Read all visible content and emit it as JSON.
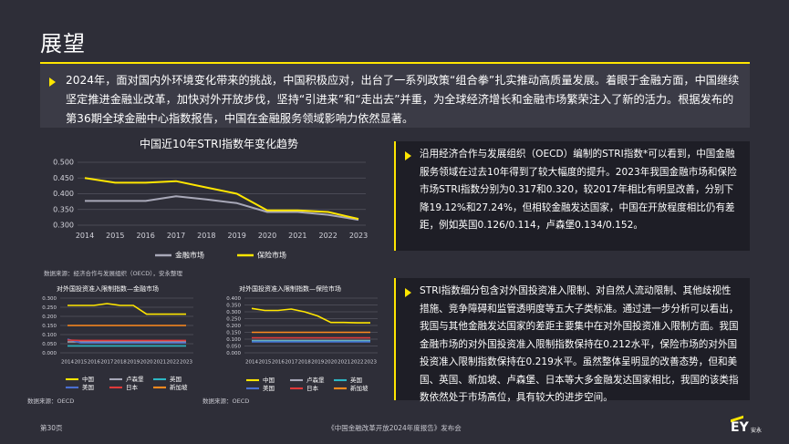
{
  "page": {
    "title": "展望",
    "intro": "2024年，面对国内外环境变化带来的挑战，中国积极应对，出台了一系列政策“组合拳”扎实推动高质量发展。着眼于金融方面，中国继续坚定推进金融业改革，加快对外开放步伐，坚持“引进来”和“走出去”并重，为全球经济增长和金融市场繁荣注入了新的活力。根据发布的第36期全球金融中心指数报告，中国在金融服务领域影响力依然显著。",
    "panel1": "沿用经济合作与发展组织（OECD）编制的STRI指数*可以看到，中国金融服务领域在过去10年得到了较大幅度的提升。2023年我国金融市场和保险市场STRI指数分别为0.317和0.320，较2017年相比有明显改善，分别下降19.12%和27.24%，但相较金融发达国家，中国在开放程度相比仍有差距，例如英国0.126/0.114，卢森堡0.134/0.152。",
    "panel2": "STRI指数细分包含对外国投资准入限制、对自然人流动限制、其他歧视性措施、竞争障碍和监管透明度等五大子类标准。通过进一步分析可以看出，我国与其他金融发达国家的差距主要集中在对外国投资准入限制方面。我国金融市场的对外国投资准入限制指数保持在0.212水平，保险市场的对外国投资准入限制指数保持在0.219水平。虽然整体呈明显的改善态势，但和美国、英国、新加坡、卢森堡、日本等大多金融发达国家相比，我国的该类指数依然处于市场高位，具有较大的进步空间。",
    "source_main": "数据来源：经济合作与发展组织（OECD），安永整理",
    "source_small1": "数据来源：OECD",
    "source_small2": "数据来源：OECD",
    "footer_page": "第30页",
    "footer_center": "《中国金融改革开放2024年度报告》发布会",
    "logo_text": "EY",
    "logo_sub": "安永",
    "colors": {
      "accent": "#ffe600",
      "background": "#2e2e38",
      "panel": "#1e1e26"
    }
  },
  "chart_data": [
    {
      "type": "line",
      "title": "中国近10年STRI指数年变化趋势",
      "x": [
        "2014",
        "2015",
        "2016",
        "2017",
        "2018",
        "2019",
        "2020",
        "2021",
        "2022",
        "2023"
      ],
      "ylim": [
        0.3,
        0.5
      ],
      "yticks": [
        "0.500",
        "0.450",
        "0.400",
        "0.350",
        "0.300"
      ],
      "grid": true,
      "legend": "bottom",
      "series": [
        {
          "name": "金融市场",
          "color": "#a8a8b8",
          "values": [
            0.377,
            0.377,
            0.377,
            0.392,
            0.382,
            0.37,
            0.342,
            0.342,
            0.333,
            0.317
          ]
        },
        {
          "name": "保险市场",
          "color": "#ffe600",
          "values": [
            0.45,
            0.435,
            0.435,
            0.44,
            0.42,
            0.4,
            0.347,
            0.347,
            0.342,
            0.32
          ]
        }
      ]
    },
    {
      "type": "line",
      "title": "对外国投资准入限制指数—金融市场",
      "x": [
        "2014",
        "2015",
        "2016",
        "2017",
        "2018",
        "2019",
        "2020",
        "2021",
        "2022",
        "2023"
      ],
      "ylim": [
        0,
        0.3
      ],
      "yticks": [
        "0.300",
        "0.250",
        "0.200",
        "0.150",
        "0.100",
        "0.050",
        "0.000"
      ],
      "grid": true,
      "legend": "bottom",
      "series": [
        {
          "name": "中国",
          "color": "#ffe600",
          "values": [
            0.26,
            0.26,
            0.26,
            0.27,
            0.26,
            0.26,
            0.212,
            0.212,
            0.212,
            0.212
          ]
        },
        {
          "name": "卢森堡",
          "color": "#a8a8b8",
          "values": [
            0.06,
            0.06,
            0.06,
            0.06,
            0.06,
            0.06,
            0.06,
            0.06,
            0.06,
            0.06
          ]
        },
        {
          "name": "英国",
          "color": "#2db7c4",
          "values": [
            0.038,
            0.038,
            0.038,
            0.038,
            0.038,
            0.038,
            0.038,
            0.038,
            0.038,
            0.038
          ]
        },
        {
          "name": "美国",
          "color": "#4a6fd1",
          "values": [
            0.075,
            0.055,
            0.055,
            0.055,
            0.055,
            0.055,
            0.055,
            0.055,
            0.055,
            0.055
          ]
        },
        {
          "name": "日本",
          "color": "#e03a3a",
          "values": [
            0.07,
            0.068,
            0.068,
            0.068,
            0.068,
            0.068,
            0.068,
            0.068,
            0.068,
            0.068
          ]
        },
        {
          "name": "新加坡",
          "color": "#ff8a1e",
          "values": [
            0.15,
            0.15,
            0.15,
            0.15,
            0.15,
            0.15,
            0.15,
            0.15,
            0.15,
            0.15
          ]
        }
      ]
    },
    {
      "type": "line",
      "title": "对外国投资准入限制指数—保险市场",
      "x": [
        "2014",
        "2015",
        "2016",
        "2017",
        "2018",
        "2019",
        "2020",
        "2021",
        "2022",
        "2023"
      ],
      "ylim": [
        0,
        0.4
      ],
      "yticks": [
        "0.400",
        "0.350",
        "0.300",
        "0.250",
        "0.200",
        "0.150",
        "0.100",
        "0.050",
        "0.000"
      ],
      "grid": true,
      "legend": "bottom",
      "series": [
        {
          "name": "中国",
          "color": "#ffe600",
          "values": [
            0.325,
            0.31,
            0.31,
            0.32,
            0.3,
            0.27,
            0.222,
            0.222,
            0.219,
            0.219
          ]
        },
        {
          "name": "卢森堡",
          "color": "#a8a8b8",
          "values": [
            0.09,
            0.09,
            0.09,
            0.09,
            0.09,
            0.09,
            0.09,
            0.09,
            0.09,
            0.09
          ]
        },
        {
          "name": "英国",
          "color": "#2db7c4",
          "values": [
            0.085,
            0.085,
            0.085,
            0.085,
            0.085,
            0.085,
            0.085,
            0.085,
            0.085,
            0.085
          ]
        },
        {
          "name": "美国",
          "color": "#4a6fd1",
          "values": [
            0.08,
            0.08,
            0.08,
            0.08,
            0.08,
            0.08,
            0.08,
            0.08,
            0.08,
            0.08
          ]
        },
        {
          "name": "日本",
          "color": "#e03a3a",
          "values": [
            0.11,
            0.11,
            0.11,
            0.11,
            0.11,
            0.11,
            0.11,
            0.11,
            0.11,
            0.11
          ]
        },
        {
          "name": "新加坡",
          "color": "#ff8a1e",
          "values": [
            0.15,
            0.15,
            0.15,
            0.15,
            0.15,
            0.15,
            0.15,
            0.15,
            0.15,
            0.15
          ]
        }
      ]
    }
  ]
}
